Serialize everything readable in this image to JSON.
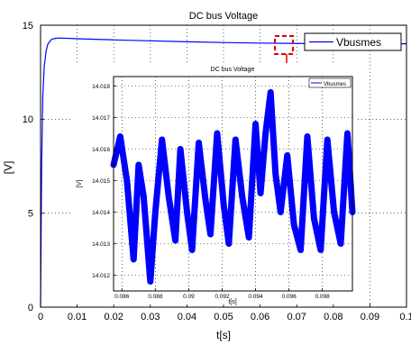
{
  "chart_data": [
    {
      "type": "line",
      "title": "DC bus Voltage",
      "xlabel": "t[s]",
      "ylabel": "[V]",
      "xlim": [
        0,
        0.1
      ],
      "ylim": [
        0,
        15
      ],
      "x_ticks": [
        0,
        0.01,
        0.02,
        0.03,
        0.04,
        0.05,
        0.06,
        0.07,
        0.08,
        0.09,
        0.1
      ],
      "x_tick_labels": [
        "0",
        "0.01",
        "0.02",
        "0.03",
        "0.04",
        "0.05",
        "0.06",
        "0.07",
        "0.08",
        "0.09",
        "0.1"
      ],
      "y_ticks": [
        0,
        5,
        10,
        15
      ],
      "y_tick_labels": [
        "0",
        "5",
        "10",
        "15"
      ],
      "grid": true,
      "legend_position": "top-right",
      "series": [
        {
          "name": "Vbusmes",
          "color": "#0000ff",
          "x": [
            0,
            0.0003,
            0.0006,
            0.001,
            0.0015,
            0.002,
            0.003,
            0.004,
            0.005,
            0.01,
            0.02,
            0.03,
            0.04,
            0.05,
            0.06,
            0.07,
            0.08,
            0.09,
            0.1
          ],
          "y": [
            0,
            7.6,
            11.2,
            12.8,
            13.6,
            14.0,
            14.25,
            14.3,
            14.32,
            14.28,
            14.22,
            14.17,
            14.12,
            14.08,
            14.05,
            14.03,
            14.02,
            14.01,
            14.01
          ]
        }
      ]
    },
    {
      "type": "line",
      "title": "DC bus Voltage",
      "xlabel": "t[s]",
      "ylabel": "[V]",
      "xlim": [
        0.0855,
        0.0998
      ],
      "ylim": [
        14.0115,
        14.0183
      ],
      "x_ticks": [
        0.086,
        0.088,
        0.09,
        0.092,
        0.094,
        0.096,
        0.098
      ],
      "x_tick_labels": [
        "0.086",
        "0.088",
        "0.09",
        "0.092",
        "0.094",
        "0.096",
        "0.098"
      ],
      "y_ticks": [
        14.012,
        14.013,
        14.014,
        14.015,
        14.016,
        14.017,
        14.018
      ],
      "y_tick_labels": [
        "14.012",
        "14.013",
        "14.014",
        "14.015",
        "14.016",
        "14.017",
        "14.018"
      ],
      "grid": true,
      "legend_position": "top-right",
      "series": [
        {
          "name": "Vbusmes",
          "color": "#0000ff",
          "x": [
            0.0855,
            0.0859,
            0.0863,
            0.0867,
            0.087,
            0.0873,
            0.0877,
            0.088,
            0.0884,
            0.0888,
            0.0892,
            0.0895,
            0.0899,
            0.0902,
            0.0906,
            0.091,
            0.0913,
            0.0917,
            0.0921,
            0.0924,
            0.0928,
            0.0932,
            0.0936,
            0.094,
            0.0943,
            0.0946,
            0.0949,
            0.0952,
            0.0955,
            0.0959,
            0.0963,
            0.0967,
            0.0971,
            0.0975,
            0.0979,
            0.0983,
            0.0987,
            0.0991,
            0.0995,
            0.0998
          ],
          "y": [
            14.0155,
            14.0164,
            14.015,
            14.0125,
            14.0155,
            14.0145,
            14.0118,
            14.014,
            14.0163,
            14.0145,
            14.0131,
            14.016,
            14.014,
            14.0128,
            14.0162,
            14.0144,
            14.0133,
            14.0165,
            14.0142,
            14.013,
            14.0163,
            14.0145,
            14.0132,
            14.0168,
            14.0146,
            14.0165,
            14.0178,
            14.0152,
            14.014,
            14.0158,
            14.0136,
            14.0128,
            14.0164,
            14.0138,
            14.0128,
            14.0163,
            14.014,
            14.013,
            14.0165,
            14.014
          ]
        }
      ]
    }
  ]
}
